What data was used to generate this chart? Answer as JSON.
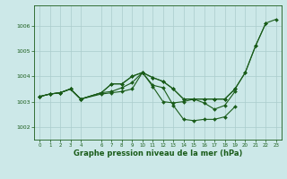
{
  "background_color": "#cce8e8",
  "grid_color": "#aacccc",
  "line_color": "#1a5c1a",
  "marker_color": "#1a5c1a",
  "xlabel": "Graphe pression niveau de la mer (hPa)",
  "xlabel_fontsize": 6.0,
  "xlim": [
    -0.5,
    23.5
  ],
  "ylim": [
    1001.5,
    1006.8
  ],
  "yticks": [
    1002,
    1003,
    1004,
    1005,
    1006
  ],
  "xticks": [
    0,
    1,
    2,
    3,
    4,
    6,
    7,
    8,
    9,
    10,
    11,
    12,
    13,
    14,
    15,
    16,
    17,
    18,
    19,
    20,
    21,
    22,
    23
  ],
  "series": [
    {
      "x": [
        0,
        1,
        2,
        3,
        4,
        6,
        7,
        8,
        9,
        10,
        11,
        12,
        13,
        14,
        15,
        16,
        17,
        18,
        19
      ],
      "y": [
        1003.2,
        1003.3,
        1003.35,
        1003.5,
        1003.1,
        1003.3,
        1003.35,
        1003.4,
        1003.5,
        1004.15,
        1003.6,
        1003.0,
        1002.95,
        1003.0,
        1003.1,
        1002.95,
        1002.7,
        1002.85,
        1003.4
      ]
    },
    {
      "x": [
        0,
        1,
        2,
        3,
        4,
        6,
        7,
        8,
        9,
        10,
        11,
        12,
        13,
        14,
        15,
        16,
        17,
        18,
        19
      ],
      "y": [
        1003.2,
        1003.3,
        1003.35,
        1003.5,
        1003.1,
        1003.35,
        1003.4,
        1003.55,
        1003.75,
        1004.15,
        1003.65,
        1003.55,
        1002.85,
        1002.3,
        1002.25,
        1002.3,
        1002.3,
        1002.4,
        1002.8
      ]
    },
    {
      "x": [
        0,
        1,
        2,
        3,
        4,
        6,
        7,
        8,
        9,
        10,
        11,
        12,
        13,
        14,
        15,
        16,
        17,
        18,
        19,
        20,
        21,
        22
      ],
      "y": [
        1003.2,
        1003.3,
        1003.35,
        1003.5,
        1003.1,
        1003.35,
        1003.7,
        1003.7,
        1004.0,
        1004.15,
        1003.95,
        1003.8,
        1003.5,
        1003.1,
        1003.1,
        1003.1,
        1003.1,
        1003.1,
        1003.5,
        1004.15,
        1005.2,
        1006.1
      ]
    },
    {
      "x": [
        0,
        1,
        2,
        3,
        4,
        6,
        7,
        8,
        9,
        10,
        11,
        12,
        13,
        14,
        15,
        16,
        17,
        18,
        19,
        20,
        21,
        22,
        23
      ],
      "y": [
        1003.2,
        1003.3,
        1003.35,
        1003.5,
        1003.1,
        1003.35,
        1003.7,
        1003.7,
        1004.0,
        1004.15,
        1003.95,
        1003.8,
        1003.5,
        1003.1,
        1003.1,
        1003.1,
        1003.1,
        1003.1,
        1003.5,
        1004.15,
        1005.2,
        1006.1,
        1006.25
      ]
    }
  ]
}
